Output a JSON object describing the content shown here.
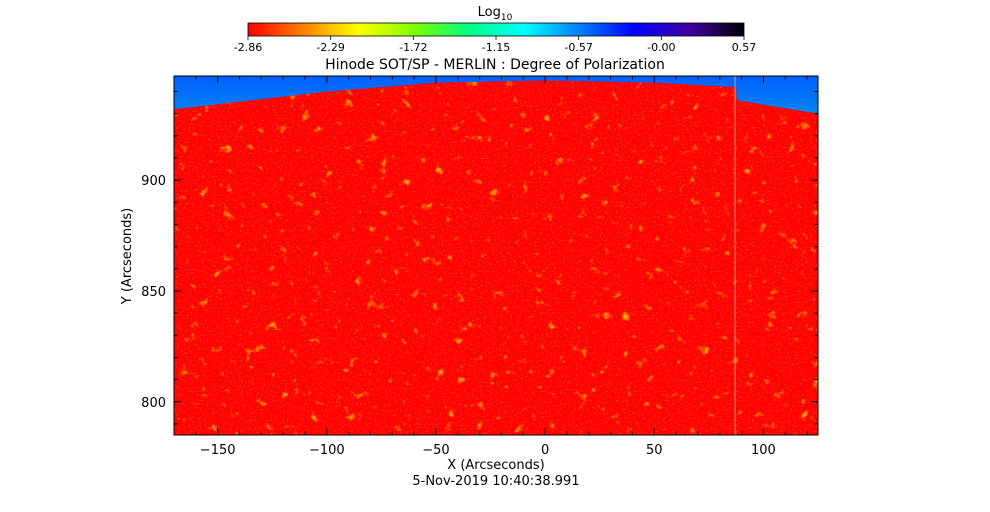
{
  "colorbar": {
    "label": "Log",
    "label_sub": "10",
    "ticks": [
      "-2.86",
      "-2.29",
      "-1.72",
      "-1.15",
      "-0.57",
      "-0.00",
      "0.57"
    ],
    "range": [
      -2.86,
      0.57
    ],
    "colormap": [
      "#ff0000",
      "#ff8000",
      "#ffff00",
      "#80ff00",
      "#00ff80",
      "#00ffff",
      "#0080ff",
      "#0000ff",
      "#4000a0",
      "#000000"
    ]
  },
  "chart_data": {
    "type": "heatmap",
    "title": "Hinode SOT/SP - MERLIN : Degree of Polarization",
    "xlabel": "X (Arcseconds)",
    "ylabel": "Y (Arcseconds)",
    "xlim": [
      -170,
      125
    ],
    "ylim": [
      785,
      947
    ],
    "x_ticks": [
      -150,
      -100,
      -50,
      0,
      50,
      100
    ],
    "y_ticks": [
      800,
      850,
      900
    ],
    "x_tick_labels": [
      "−150",
      "−100",
      "−50",
      "0",
      "50",
      "100"
    ],
    "y_tick_labels": [
      "800",
      "850",
      "900"
    ],
    "limb_y": [
      {
        "x": -170,
        "y": 932
      },
      {
        "x": -100,
        "y": 940
      },
      {
        "x": -50,
        "y": 944
      },
      {
        "x": 0,
        "y": 945
      },
      {
        "x": 50,
        "y": 944
      },
      {
        "x": 87,
        "y": 942
      },
      {
        "x": 88,
        "y": 936
      },
      {
        "x": 125,
        "y": 930
      }
    ],
    "dominant_value_log10": -2.86,
    "off_limb_value_log10": -0.9
  },
  "timestamp": "5-Nov-2019 10:40:38.991"
}
